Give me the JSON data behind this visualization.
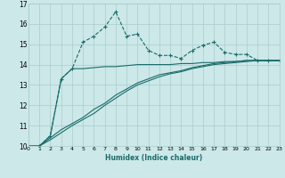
{
  "xlabel": "Humidex (Indice chaleur)",
  "ylabel": "",
  "background_color": "#cce8e8",
  "grid_color": "#aacccc",
  "line_color": "#1a6b6b",
  "xlim": [
    0,
    23
  ],
  "ylim": [
    10,
    17
  ],
  "yticks": [
    10,
    11,
    12,
    13,
    14,
    15,
    16,
    17
  ],
  "xticks": [
    0,
    1,
    2,
    3,
    4,
    5,
    6,
    7,
    8,
    9,
    10,
    11,
    12,
    13,
    14,
    15,
    16,
    17,
    18,
    19,
    20,
    21,
    22,
    23
  ],
  "series1_x": [
    1,
    2,
    3,
    4,
    5,
    6,
    7,
    8,
    9,
    10,
    11,
    12,
    13,
    14,
    15,
    16,
    17,
    18,
    19,
    20,
    21,
    22,
    23
  ],
  "series1_y": [
    10.0,
    10.5,
    13.3,
    13.8,
    15.1,
    15.4,
    15.85,
    16.6,
    15.4,
    15.5,
    14.7,
    14.45,
    14.45,
    14.3,
    14.7,
    14.95,
    15.1,
    14.6,
    14.5,
    14.5,
    14.2,
    14.2,
    14.2
  ],
  "series2_x": [
    1,
    2,
    3,
    4,
    5,
    6,
    7,
    8,
    9,
    10,
    11,
    12,
    13,
    14,
    15,
    16,
    17,
    18,
    19,
    20,
    21,
    22,
    23
  ],
  "series2_y": [
    10.0,
    10.5,
    13.3,
    13.8,
    13.8,
    13.85,
    13.9,
    13.9,
    13.95,
    14.0,
    14.0,
    14.0,
    14.0,
    14.05,
    14.05,
    14.1,
    14.1,
    14.15,
    14.15,
    14.2,
    14.2,
    14.2,
    14.2
  ],
  "series3_x": [
    0,
    1,
    2,
    3,
    4,
    5,
    6,
    7,
    8,
    9,
    10,
    11,
    12,
    13,
    14,
    15,
    16,
    17,
    18,
    19,
    20,
    21,
    22,
    23
  ],
  "series3_y": [
    10.0,
    10.0,
    10.4,
    10.8,
    11.1,
    11.4,
    11.8,
    12.1,
    12.5,
    12.8,
    13.1,
    13.3,
    13.5,
    13.6,
    13.7,
    13.85,
    13.95,
    14.05,
    14.1,
    14.15,
    14.2,
    14.2,
    14.2,
    14.2
  ],
  "series4_x": [
    0,
    1,
    2,
    3,
    4,
    5,
    6,
    7,
    8,
    9,
    10,
    11,
    12,
    13,
    14,
    15,
    16,
    17,
    18,
    19,
    20,
    21,
    22,
    23
  ],
  "series4_y": [
    10.0,
    10.0,
    10.3,
    10.65,
    11.0,
    11.3,
    11.6,
    12.0,
    12.35,
    12.7,
    13.0,
    13.2,
    13.4,
    13.55,
    13.65,
    13.8,
    13.9,
    14.0,
    14.05,
    14.1,
    14.15,
    14.2,
    14.2,
    14.2
  ]
}
